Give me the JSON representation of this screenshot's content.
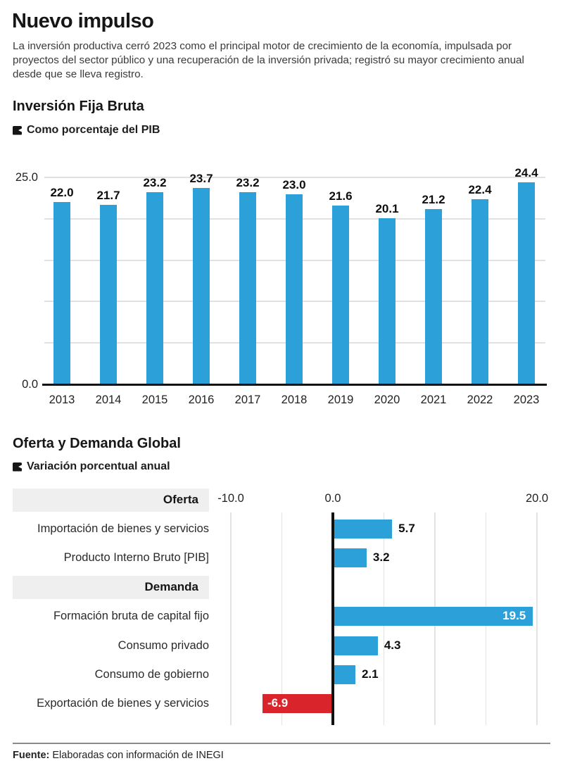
{
  "header": {
    "title": "Nuevo impulso",
    "intro": "La inversión productiva cerró 2023 como el principal motor de crecimiento de la economía, impulsada por proyectos del sector público y una recuperación de la inversión privada; registró su mayor crecimiento anual desde que se lleva registro."
  },
  "colors": {
    "bar_blue": "#2ca0d8",
    "bar_red": "#d9242b",
    "grid_gray": "#e3e3e3",
    "axis_black": "#111111",
    "header_row_bg": "#efefef"
  },
  "source": {
    "prefix": "Fuente:",
    "rest": " Elaboradas con información de INEGI"
  },
  "chart_data": [
    {
      "type": "bar",
      "title": "Inversión Fija Bruta",
      "legend": "Como porcentaje del PIB",
      "categories": [
        "2013",
        "2014",
        "2015",
        "2016",
        "2017",
        "2018",
        "2019",
        "2020",
        "2021",
        "2022",
        "2023"
      ],
      "values": [
        22.0,
        21.7,
        23.2,
        23.7,
        23.2,
        23.0,
        21.6,
        20.1,
        21.2,
        22.4,
        24.4
      ],
      "value_labels": [
        "22.0",
        "21.7",
        "23.2",
        "23.7",
        "23.2",
        "23.0",
        "21.6",
        "20.1",
        "21.2",
        "22.4",
        "24.4"
      ],
      "ylim": [
        0,
        25
      ],
      "yticks": [
        {
          "value": 25,
          "label": "25.0"
        },
        {
          "value": 0,
          "label": "0.0"
        }
      ],
      "gridline_values": [
        25,
        20,
        15,
        10,
        5
      ],
      "grid": true,
      "bar_color": "#2ca0d8"
    },
    {
      "type": "bar-horizontal",
      "title": "Oferta y Demanda Global",
      "legend": "Variación porcentual anual",
      "xlim": [
        -10,
        20
      ],
      "xticks": [
        {
          "value": -10,
          "label": "-10.0"
        },
        {
          "value": 0,
          "label": "0.0"
        },
        {
          "value": 20,
          "label": "20.0"
        }
      ],
      "gridline_values": [
        -10,
        -5,
        0,
        5,
        10,
        15,
        20
      ],
      "grid": true,
      "rows": [
        {
          "kind": "header",
          "label": "Oferta"
        },
        {
          "kind": "bar",
          "label": "Importación de bienes y servicios",
          "value": 5.7,
          "display": "5.7",
          "color": "blue",
          "value_inside": false
        },
        {
          "kind": "bar",
          "label": "Producto Interno Bruto [PIB]",
          "value": 3.2,
          "display": "3.2",
          "color": "blue",
          "value_inside": false
        },
        {
          "kind": "header",
          "label": "Demanda"
        },
        {
          "kind": "bar",
          "label": "Formación bruta de capital fijo",
          "value": 19.5,
          "display": "19.5",
          "color": "blue",
          "value_inside": true
        },
        {
          "kind": "bar",
          "label": "Consumo privado",
          "value": 4.3,
          "display": "4.3",
          "color": "blue",
          "value_inside": false
        },
        {
          "kind": "bar",
          "label": "Consumo de gobierno",
          "value": 2.1,
          "display": "2.1",
          "color": "blue",
          "value_inside": false
        },
        {
          "kind": "bar",
          "label": "Exportación de bienes y servicios",
          "value": -6.9,
          "display": "-6.9",
          "color": "red",
          "value_inside": true
        }
      ]
    }
  ]
}
